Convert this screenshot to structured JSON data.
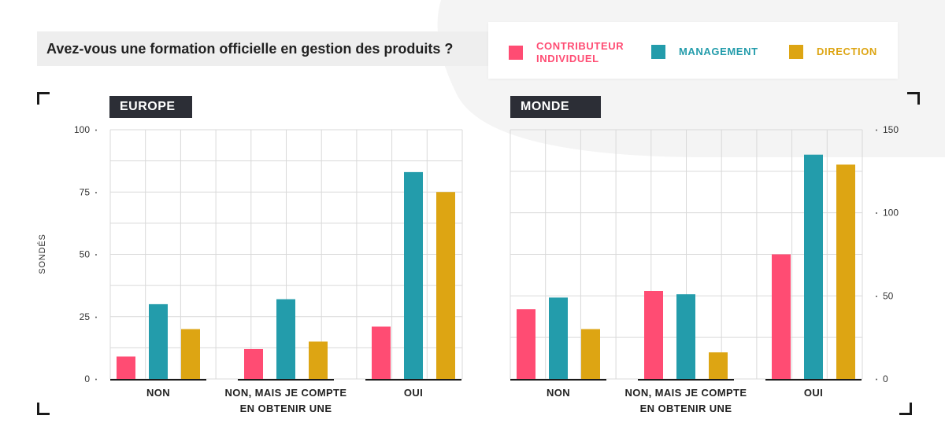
{
  "title": "Avez-vous une formation officielle en gestion des produits ?",
  "legend": [
    {
      "label": "CONTRIBUTEUR INDIVIDUEL",
      "color": "#ff4c73"
    },
    {
      "label": "MANAGEMENT",
      "color": "#239cab"
    },
    {
      "label": "DIRECTION",
      "color": "#dda513"
    }
  ],
  "colors": {
    "grid": "#d9d9d9",
    "axis": "#1a1a1a",
    "tag_bg": "#2c2e36",
    "title_bg": "#eeeeee"
  },
  "chart_data": [
    {
      "type": "bar",
      "panel_label": "EUROPE",
      "categories": [
        "NON",
        "NON, MAIS JE COMPTE EN OBTENIR UNE",
        "OUI"
      ],
      "series": [
        {
          "name": "CONTRIBUTEUR INDIVIDUEL",
          "values": [
            9,
            12,
            21
          ]
        },
        {
          "name": "MANAGEMENT",
          "values": [
            30,
            32,
            83
          ]
        },
        {
          "name": "DIRECTION",
          "values": [
            20,
            15,
            75
          ]
        }
      ],
      "ylabel": "SONDÉS",
      "ylim": [
        0,
        100
      ],
      "yticks": [
        0,
        25,
        50,
        75,
        100
      ],
      "axis_side": "left",
      "grid": true
    },
    {
      "type": "bar",
      "panel_label": "MONDE",
      "categories": [
        "NON",
        "NON, MAIS JE COMPTE EN OBTENIR UNE",
        "OUI"
      ],
      "series": [
        {
          "name": "CONTRIBUTEUR INDIVIDUEL",
          "values": [
            42,
            53,
            75
          ]
        },
        {
          "name": "MANAGEMENT",
          "values": [
            49,
            51,
            135
          ]
        },
        {
          "name": "DIRECTION",
          "values": [
            30,
            16,
            129
          ]
        }
      ],
      "ylabel": "",
      "ylim": [
        0,
        150
      ],
      "yticks": [
        0,
        50,
        100,
        150
      ],
      "axis_side": "right",
      "grid": true
    }
  ]
}
